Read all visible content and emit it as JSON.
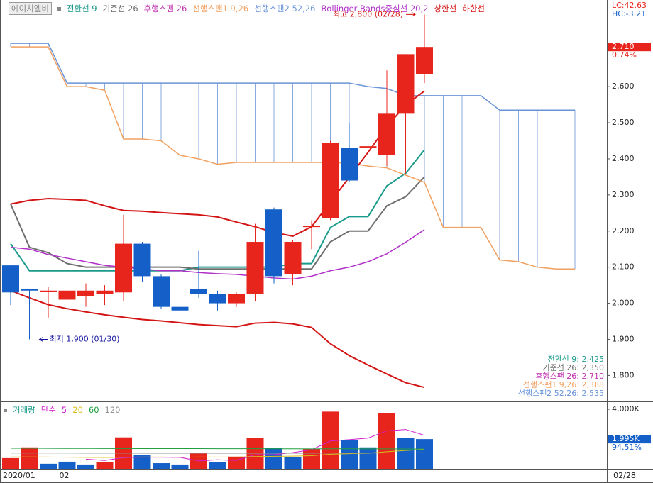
{
  "chart_data": [
    {
      "type": "candlestick",
      "name": "에이치엘비",
      "categories": [
        "2020/01",
        null,
        null,
        "02",
        null,
        null,
        null,
        null,
        null,
        null,
        null,
        null,
        null,
        null,
        null,
        null,
        null,
        null,
        null,
        null,
        null,
        null,
        null,
        null,
        null,
        null,
        null,
        null,
        null,
        null,
        null
      ],
      "open": [
        2105,
        2040,
        2035,
        2010,
        2020,
        2025,
        2030,
        2165,
        2075,
        1990,
        2040,
        2025,
        2000,
        2025,
        2260,
        2080,
        2215,
        2235,
        2430,
        2430,
        2410,
        2525,
        2635,
        null,
        null,
        null,
        null,
        null,
        null,
        null,
        null
      ],
      "high": [
        2105,
        2040,
        2045,
        2045,
        2055,
        2050,
        2245,
        2170,
        2080,
        2015,
        2145,
        2035,
        2030,
        2220,
        2265,
        2175,
        2230,
        2450,
        2500,
        2480,
        2645,
        2690,
        2800,
        null,
        null,
        null,
        null,
        null,
        null,
        null,
        null
      ],
      "low": [
        1995,
        1900,
        1960,
        1995,
        1990,
        1995,
        2005,
        2060,
        1985,
        1965,
        2015,
        1980,
        1990,
        2005,
        2055,
        2050,
        2150,
        2230,
        2335,
        2350,
        2380,
        2360,
        2610,
        null,
        null,
        null,
        null,
        null,
        null,
        null,
        null
      ],
      "close": [
        2030,
        2035,
        2035,
        2035,
        2035,
        2035,
        2165,
        2075,
        1990,
        1980,
        2025,
        2000,
        2025,
        2170,
        2075,
        2170,
        2215,
        2445,
        2340,
        2435,
        2525,
        2690,
        2710,
        null,
        null,
        null,
        null,
        null,
        null,
        null,
        null
      ],
      "up_color": "#e8251d",
      "down_color": "#1460c8",
      "series": [
        {
          "name": "전환선 9",
          "color": "#1a9a8a",
          "values": [
            2165,
            2090,
            2090,
            2090,
            2090,
            2090,
            2090,
            2090,
            2090,
            2090,
            2100,
            2100,
            2100,
            2100,
            2100,
            2110,
            2110,
            2210,
            2240,
            2240,
            2325,
            2360,
            2425,
            null,
            null,
            null,
            null,
            null,
            null,
            null,
            null
          ]
        },
        {
          "name": "기준선 26",
          "color": "#6e6e6e",
          "values": [
            2275,
            2155,
            2140,
            2110,
            2100,
            2100,
            2100,
            2100,
            2100,
            2100,
            2095,
            2095,
            2095,
            2095,
            2095,
            2095,
            2095,
            2170,
            2200,
            2200,
            2270,
            2295,
            2350,
            null,
            null,
            null,
            null,
            null,
            null,
            null,
            null
          ]
        },
        {
          "name": "선행스팬1 9,26",
          "color": "#f0a060",
          "values": [
            2710,
            2710,
            2710,
            2600,
            2600,
            2590,
            2455,
            2455,
            2450,
            2410,
            2400,
            2385,
            2390,
            2390,
            2390,
            2390,
            2390,
            2390,
            2388,
            2380,
            2375,
            2355,
            2335,
            2210,
            2210,
            2210,
            2120,
            2115,
            2100,
            2095,
            2095
          ]
        },
        {
          "name": "선행스팬2 52,26",
          "color": "#6a94d8",
          "values": [
            2720,
            2720,
            2720,
            2610,
            2610,
            2610,
            2610,
            2610,
            2610,
            2610,
            2610,
            2610,
            2610,
            2610,
            2610,
            2610,
            2610,
            2610,
            2610,
            2600,
            2595,
            2575,
            2575,
            2575,
            2575,
            2575,
            2535,
            2535,
            2535,
            2535,
            2535
          ]
        },
        {
          "name": "Bollinger Bands중심선 20,2",
          "color": "#b030c8",
          "values": [
            2155,
            2150,
            2135,
            2125,
            2115,
            2105,
            2100,
            2095,
            2090,
            2090,
            2085,
            2082,
            2080,
            2075,
            2070,
            2067,
            2075,
            2090,
            2100,
            2115,
            2137,
            2169,
            2204,
            null,
            null,
            null,
            null,
            null,
            null,
            null,
            null
          ]
        },
        {
          "name": "상한선",
          "color": "#d41414",
          "values": [
            2275,
            2285,
            2290,
            2288,
            2285,
            2270,
            2257,
            2255,
            2251,
            2248,
            2245,
            2239,
            2225,
            2212,
            2196,
            2186,
            2212,
            2280,
            2349,
            2418,
            2490,
            2549,
            2588,
            null,
            null,
            null,
            null,
            null,
            null,
            null,
            null
          ]
        },
        {
          "name": "하한선",
          "color": "#d41414",
          "values": [
            2035,
            2015,
            1996,
            1985,
            1976,
            1968,
            1961,
            1955,
            1951,
            1946,
            1941,
            1938,
            1935,
            1945,
            1947,
            1943,
            1933,
            1888,
            1855,
            1829,
            1804,
            1780,
            1767,
            null,
            null,
            null,
            null,
            null,
            null,
            null,
            null
          ]
        }
      ],
      "lagging_legend": {
        "name": "후행스팬 26",
        "color": "#c030b0"
      },
      "cloud_color": "#6a94d8",
      "ylim": [
        1730,
        2840
      ],
      "yticks": [
        {
          "value": 1800,
          "label": "1,800"
        },
        {
          "value": 1900,
          "label": "1,900"
        },
        {
          "value": 2000,
          "label": "2,000"
        },
        {
          "value": 2100,
          "label": "2,100"
        },
        {
          "value": 2200,
          "label": "2,200"
        },
        {
          "value": 2300,
          "label": "2,300"
        },
        {
          "value": 2400,
          "label": "2,400"
        },
        {
          "value": 2500,
          "label": "2,500"
        },
        {
          "value": 2600,
          "label": "2,600"
        }
      ],
      "last_price": {
        "value": 2710,
        "label": "2,710"
      },
      "change": "0.74%",
      "lc": "LC:42.63",
      "hc": "HC:-3.21",
      "high_note": "최고 2,800 (02/28)",
      "low_note": "최저 1,900 (01/30)",
      "info_lines": [
        {
          "text": "전환선 9: 2,425",
          "color": "#1a9a8a"
        },
        {
          "text": "기준선 26: 2,350",
          "color": "#6e6e6e"
        },
        {
          "text": "후행스팬 26: 2,710",
          "color": "#c030b0"
        },
        {
          "text": "선행스팬1 9,26: 2,388",
          "color": "#f0a060"
        },
        {
          "text": "선행스팬2 52,26: 2,535",
          "color": "#6a94d8"
        }
      ],
      "date_label": "02/28"
    },
    {
      "type": "bar",
      "name": "거래량",
      "mode": "단순",
      "values": [
        720,
        1440,
        340,
        480,
        290,
        430,
        2110,
        910,
        380,
        290,
        1060,
        430,
        820,
        2060,
        1390,
        770,
        1340,
        3840,
        1920,
        1440,
        3740,
        2060,
        1995
      ],
      "colors": [
        "#e8251d",
        "#e8251d",
        "#1460c8",
        "#1460c8",
        "#1460c8",
        "#e8251d",
        "#e8251d",
        "#1460c8",
        "#1460c8",
        "#1460c8",
        "#e8251d",
        "#1460c8",
        "#e8251d",
        "#e8251d",
        "#1460c8",
        "#1460c8",
        "#e8251d",
        "#e8251d",
        "#1460c8",
        "#1460c8",
        "#e8251d",
        "#1460c8",
        "#1460c8"
      ],
      "series": [
        {
          "name": "5",
          "color": "#d020d0",
          "values": [
            null,
            null,
            null,
            null,
            650,
            560,
            750,
            780,
            780,
            770,
            530,
            610,
            560,
            950,
            950,
            1090,
            1280,
            1870,
            1960,
            2060,
            2550,
            2640,
            2250
          ]
        },
        {
          "name": "20",
          "color": "#d8c020",
          "values": [
            800,
            800,
            790,
            780,
            770,
            760,
            780,
            790,
            790,
            780,
            790,
            790,
            790,
            820,
            840,
            850,
            880,
            980,
            1020,
            1050,
            1150,
            1230,
            1300
          ]
        },
        {
          "name": "60",
          "color": "#20a040",
          "values": [
            1380,
            1380,
            1375,
            1370,
            1370,
            1365,
            1365,
            1360,
            1360,
            1355,
            1355,
            1350,
            1350,
            1350,
            1345,
            1345,
            1340,
            1345,
            1345,
            1340,
            1340,
            1335,
            1330
          ]
        },
        {
          "name": "120",
          "color": "#909090",
          "values": [
            1060,
            1060,
            1060,
            1060,
            1055,
            1055,
            1055,
            1050,
            1050,
            1050,
            1050,
            1050,
            1050,
            1050,
            1050,
            1050,
            1050,
            1060,
            1060,
            1060,
            1070,
            1070,
            1080
          ]
        }
      ],
      "ylim": [
        0,
        4430
      ],
      "yticks": [
        {
          "value": 4000,
          "label": "4,000K"
        }
      ],
      "last_value": {
        "value": 1995,
        "label": "1,995K"
      },
      "ratio": "94.51%"
    }
  ]
}
